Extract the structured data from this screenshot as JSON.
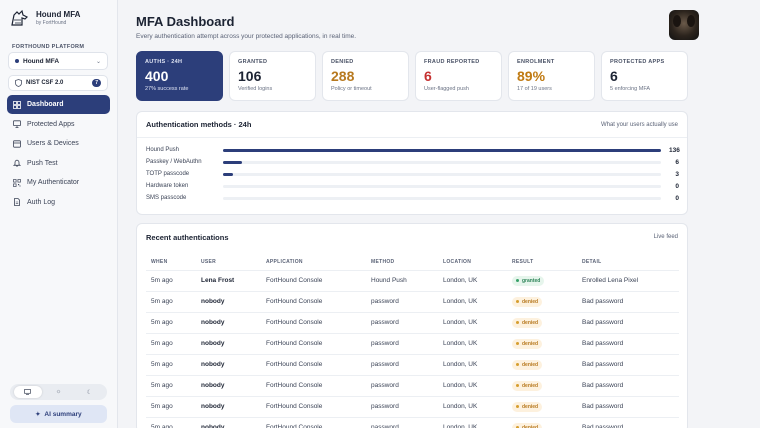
{
  "brand": {
    "name": "Hound MFA",
    "sub": "by FortHound"
  },
  "sidebar": {
    "section_label": "FORTHOUND PLATFORM",
    "platform_select": "Hound MFA",
    "nist": {
      "label": "NIST CSF 2.0",
      "badge": "7"
    },
    "nav": [
      {
        "label": "Dashboard",
        "icon": "grid-icon",
        "active": true
      },
      {
        "label": "Protected Apps",
        "icon": "monitor-icon"
      },
      {
        "label": "Users & Devices",
        "icon": "users-icon"
      },
      {
        "label": "Push Test",
        "icon": "bell-icon"
      },
      {
        "label": "My Authenticator",
        "icon": "qr-icon"
      },
      {
        "label": "Auth Log",
        "icon": "document-icon"
      }
    ],
    "ai_summary": "AI summary"
  },
  "header": {
    "title": "MFA Dashboard",
    "subtitle": "Every authentication attempt across your protected applications, in real time."
  },
  "kpis": [
    {
      "label": "AUTHS · 24H",
      "value": "400",
      "sub": "27% success rate"
    },
    {
      "label": "GRANTED",
      "value": "106",
      "sub": "Verified logins"
    },
    {
      "label": "DENIED",
      "value": "288",
      "sub": "Policy or timeout"
    },
    {
      "label": "FRAUD REPORTED",
      "value": "6",
      "sub": "User-flagged push"
    },
    {
      "label": "ENROLMENT",
      "value": "89%",
      "sub": "17 of 19 users"
    },
    {
      "label": "PROTECTED APPS",
      "value": "6",
      "sub": "5 enforcing MFA"
    }
  ],
  "methods": {
    "title": "Authentication methods · 24h",
    "note": "What your users actually use",
    "rows": [
      {
        "name": "Hound Push",
        "count": 136
      },
      {
        "name": "Passkey / WebAuthn",
        "count": 6
      },
      {
        "name": "TOTP passcode",
        "count": 3
      },
      {
        "name": "Hardware token",
        "count": 0
      },
      {
        "name": "SMS passcode",
        "count": 0
      }
    ],
    "max": 136
  },
  "recent": {
    "title": "Recent authentications",
    "note": "Live feed",
    "columns": [
      "WHEN",
      "USER",
      "APPLICATION",
      "METHOD",
      "LOCATION",
      "RESULT",
      "DETAIL"
    ],
    "rows": [
      {
        "when": "5m ago",
        "user": "Lena Frost",
        "app": "FortHound Console",
        "method": "Hound Push",
        "location": "London, UK",
        "result": "granted",
        "detail": "Enrolled Lena Pixel"
      },
      {
        "when": "5m ago",
        "user": "nobody",
        "app": "FortHound Console",
        "method": "password",
        "location": "London, UK",
        "result": "denied",
        "detail": "Bad password"
      },
      {
        "when": "5m ago",
        "user": "nobody",
        "app": "FortHound Console",
        "method": "password",
        "location": "London, UK",
        "result": "denied",
        "detail": "Bad password"
      },
      {
        "when": "5m ago",
        "user": "nobody",
        "app": "FortHound Console",
        "method": "password",
        "location": "London, UK",
        "result": "denied",
        "detail": "Bad password"
      },
      {
        "when": "5m ago",
        "user": "nobody",
        "app": "FortHound Console",
        "method": "password",
        "location": "London, UK",
        "result": "denied",
        "detail": "Bad password"
      },
      {
        "when": "5m ago",
        "user": "nobody",
        "app": "FortHound Console",
        "method": "password",
        "location": "London, UK",
        "result": "denied",
        "detail": "Bad password"
      },
      {
        "when": "5m ago",
        "user": "nobody",
        "app": "FortHound Console",
        "method": "password",
        "location": "London, UK",
        "result": "denied",
        "detail": "Bad password"
      },
      {
        "when": "5m ago",
        "user": "nobody",
        "app": "FortHound Console",
        "method": "password",
        "location": "London, UK",
        "result": "denied",
        "detail": "Bad password"
      }
    ]
  },
  "colors": {
    "accent": "#2c3e7a",
    "granted": "#2f855a",
    "denied": "#b7791f",
    "fraud": "#c53030"
  }
}
